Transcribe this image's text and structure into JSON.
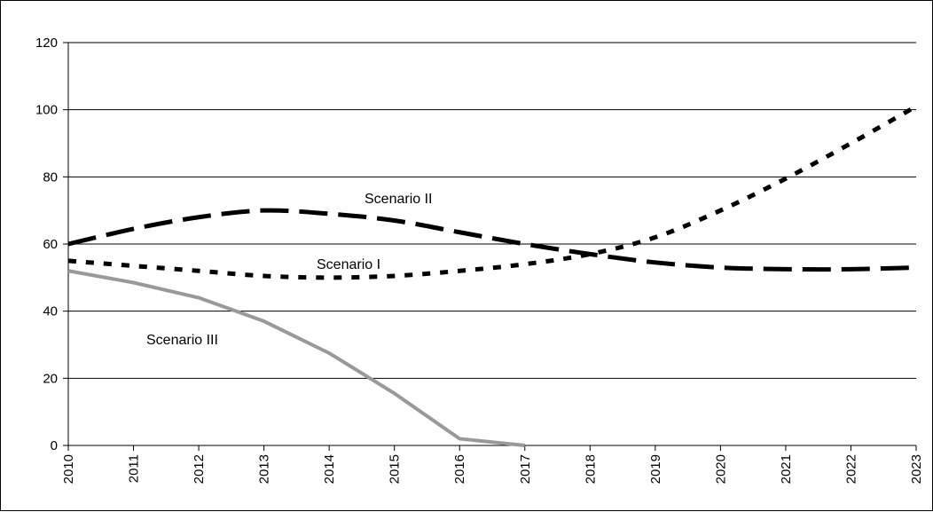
{
  "chart_data": {
    "type": "line",
    "title": "",
    "xlabel": "",
    "ylabel": "",
    "x": [
      "2010",
      "2011",
      "2012",
      "2013",
      "2014",
      "2015",
      "2016",
      "2017",
      "2018",
      "2019",
      "2020",
      "2021",
      "2022",
      "2023"
    ],
    "ylim": [
      0,
      120
    ],
    "yticks": [
      0,
      20,
      40,
      60,
      80,
      100,
      120
    ],
    "grid": "horizontal",
    "series": [
      {
        "name": "Scenario I",
        "style": "dotted",
        "color": "#000000",
        "values": [
          55,
          53.5,
          52,
          50.5,
          50,
          50.5,
          52,
          54,
          57,
          62,
          70,
          79.5,
          90,
          101
        ]
      },
      {
        "name": "Scenario II",
        "style": "dashed",
        "color": "#000000",
        "values": [
          60,
          64.5,
          68,
          70,
          69,
          67,
          63.5,
          60,
          57,
          54.5,
          53,
          52.5,
          52.5,
          53
        ]
      },
      {
        "name": "Scenario III",
        "style": "solid",
        "color": "#999999",
        "values": [
          52,
          48.5,
          44,
          37,
          27.5,
          15.5,
          2,
          0,
          null,
          null,
          null,
          null,
          null,
          null
        ]
      }
    ],
    "annotations": [
      {
        "text": "Scenario II",
        "series": 1
      },
      {
        "text": "Scenario I",
        "series": 0
      },
      {
        "text": "Scenario III",
        "series": 2
      }
    ]
  }
}
